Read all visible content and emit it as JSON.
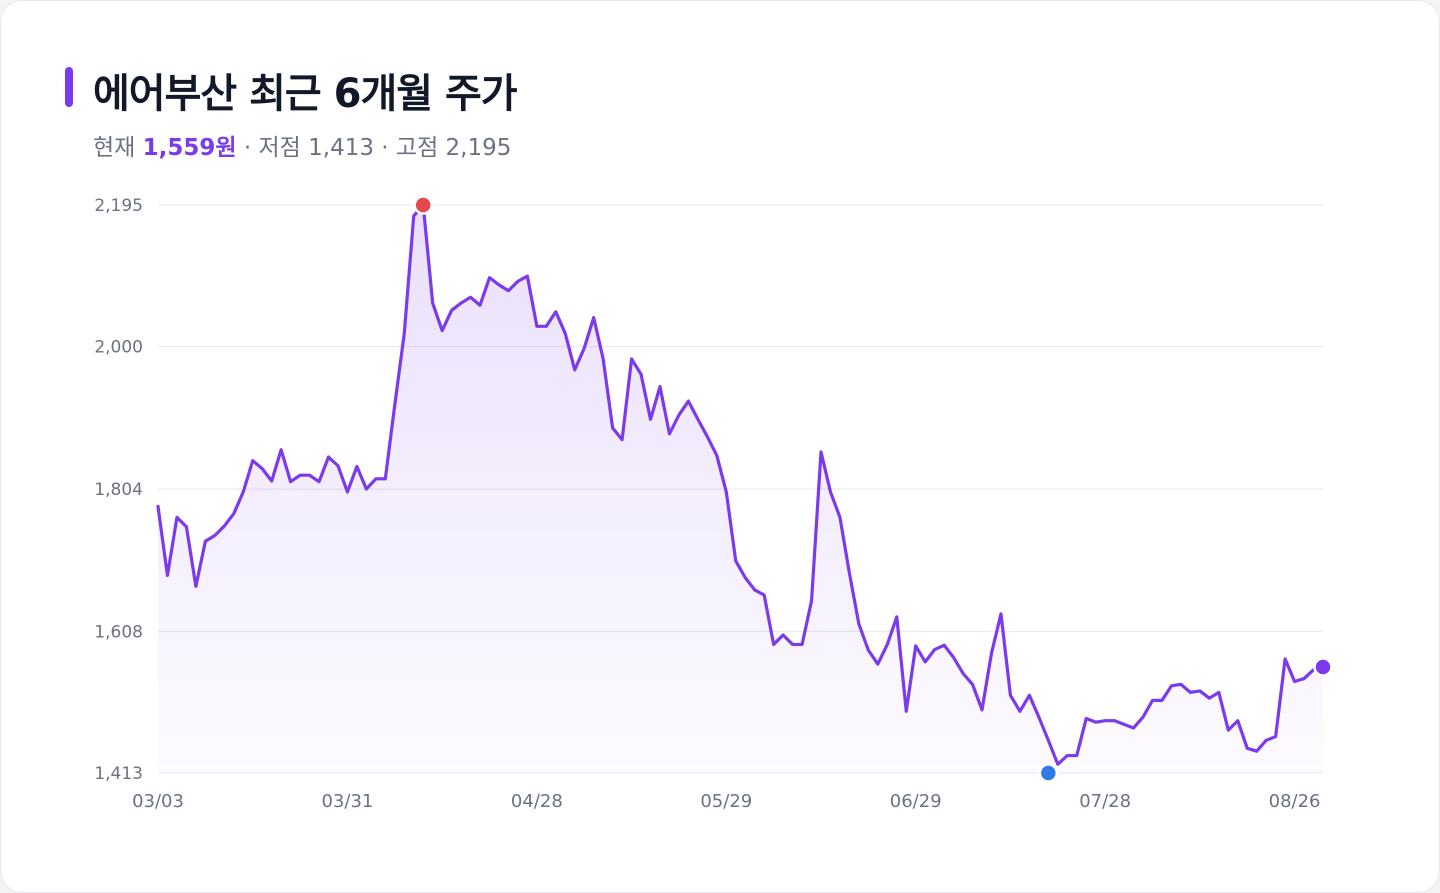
{
  "header": {
    "title": "에어부산 최근 6개월 주가",
    "current_label": "현재",
    "current_value": "1,559원",
    "low_text": "· 저점 1,413",
    "high_text": "· 고점 2,195"
  },
  "colors": {
    "accent": "#7c3aed",
    "high_marker": "#e5484d",
    "low_marker": "#2f7ae5",
    "grid": "#e5e7eb",
    "axis_text": "#6b7280"
  },
  "chart_data": {
    "type": "line",
    "title": "에어부산 최근 6개월 주가",
    "xlabel": "",
    "ylabel": "",
    "ylim": [
      1413,
      2195
    ],
    "y_ticks": [
      1413,
      1608,
      1804,
      2000,
      2195
    ],
    "y_tick_labels": [
      "1,413",
      "1,608",
      "1,804",
      "2,000",
      "2,195"
    ],
    "x_tick_labels": [
      "03/03",
      "03/31",
      "04/28",
      "05/29",
      "06/29",
      "07/28",
      "08/26"
    ],
    "x_tick_index": [
      0,
      20,
      40,
      60,
      80,
      100,
      120
    ],
    "grid": true,
    "legend": "none",
    "series": [
      {
        "values": [
          1780,
          1685,
          1765,
          1752,
          1670,
          1732,
          1740,
          1753,
          1770,
          1800,
          1843,
          1832,
          1815,
          1858,
          1814,
          1823,
          1823,
          1814,
          1848,
          1836,
          1800,
          1835,
          1804,
          1818,
          1818,
          1920,
          2018,
          2180,
          2195,
          2060,
          2022,
          2050,
          2060,
          2068,
          2057,
          2095,
          2085,
          2077,
          2090,
          2097,
          2028,
          2028,
          2048,
          2018,
          1968,
          1998,
          2040,
          1983,
          1888,
          1872,
          1983,
          1962,
          1900,
          1945,
          1880,
          1906,
          1925,
          1900,
          1876,
          1850,
          1800,
          1705,
          1682,
          1665,
          1658,
          1590,
          1603,
          1590,
          1590,
          1650,
          1855,
          1800,
          1765,
          1688,
          1618,
          1582,
          1563,
          1590,
          1628,
          1498,
          1588,
          1566,
          1583,
          1589,
          1572,
          1550,
          1535,
          1500,
          1578,
          1632,
          1520,
          1498,
          1520,
          1490,
          1458,
          1425,
          1437,
          1437,
          1488,
          1483,
          1485,
          1485,
          1480,
          1475,
          1490,
          1513,
          1513,
          1533,
          1535,
          1524,
          1526,
          1516,
          1524,
          1472,
          1485,
          1447,
          1443,
          1458,
          1463,
          1570,
          1539,
          1543,
          1555,
          1559
        ]
      }
    ],
    "annotations": [
      {
        "label": "고점",
        "value": 2195,
        "index": 28
      },
      {
        "label": "저점",
        "value": 1413,
        "index": 94
      },
      {
        "label": "현재",
        "value": 1559,
        "index": 123
      }
    ]
  }
}
